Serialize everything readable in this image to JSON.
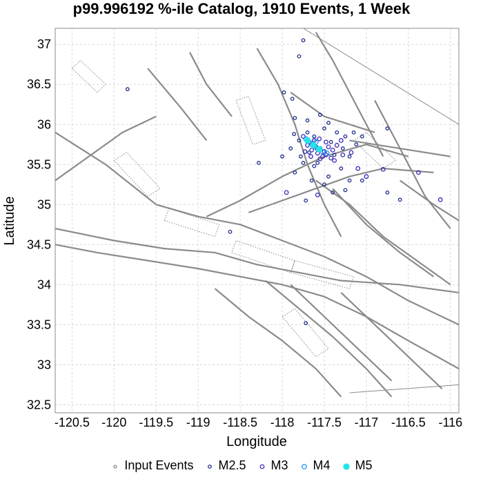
{
  "chart_data": {
    "type": "scatter",
    "title": "p99.996192 %-ile Catalog, 1910 Events, 1 Week",
    "xlabel": "Longitude",
    "ylabel": "Latitude",
    "xlim": [
      -120.7,
      -115.9
    ],
    "ylim": [
      32.4,
      37.2
    ],
    "xticks": [
      -120.5,
      -120,
      -119.5,
      -119,
      -118.5,
      -118,
      -117.5,
      -117,
      -116.5,
      -116
    ],
    "yticks": [
      32.5,
      33,
      33.5,
      34,
      34.5,
      35,
      35.5,
      36,
      36.5,
      37
    ],
    "grid": true,
    "legend_position": "bottom",
    "legend": [
      {
        "label": "Input Events",
        "color": "#888888",
        "filled": false,
        "size": 3
      },
      {
        "label": "M2.5",
        "color": "#1a2a8a",
        "filled": false,
        "size": 3.5
      },
      {
        "label": "M3",
        "color": "#3a2ab8",
        "filled": false,
        "size": 4.5
      },
      {
        "label": "M4",
        "color": "#1e90ff",
        "filled": false,
        "size": 5.5
      },
      {
        "label": "M5",
        "color": "#22e5e5",
        "filled": true,
        "size": 7
      }
    ],
    "series": [
      {
        "name": "Input Events",
        "points": [
          [
            -117.65,
            35.75
          ],
          [
            -117.6,
            35.7
          ],
          [
            -117.55,
            35.68
          ]
        ]
      },
      {
        "name": "M2.5",
        "points": [
          [
            -119.84,
            36.44
          ],
          [
            -117.88,
            36.32
          ],
          [
            -117.75,
            37.05
          ],
          [
            -117.8,
            36.85
          ],
          [
            -117.98,
            36.4
          ],
          [
            -117.85,
            36.08
          ],
          [
            -117.86,
            35.88
          ],
          [
            -118.0,
            35.6
          ],
          [
            -117.9,
            35.7
          ],
          [
            -117.7,
            36.05
          ],
          [
            -117.45,
            36.02
          ],
          [
            -117.35,
            35.9
          ],
          [
            -117.25,
            35.85
          ],
          [
            -117.15,
            35.9
          ],
          [
            -117.05,
            35.85
          ],
          [
            -117.12,
            35.75
          ],
          [
            -117.2,
            35.6
          ],
          [
            -117.3,
            35.45
          ],
          [
            -117.45,
            35.35
          ],
          [
            -117.62,
            35.48
          ],
          [
            -117.75,
            35.52
          ],
          [
            -117.85,
            35.4
          ],
          [
            -117.65,
            35.3
          ],
          [
            -117.5,
            35.25
          ],
          [
            -117.4,
            35.15
          ],
          [
            -117.25,
            35.18
          ],
          [
            -117.2,
            35.3
          ],
          [
            -117.05,
            35.3
          ],
          [
            -116.75,
            35.15
          ],
          [
            -116.6,
            35.06
          ],
          [
            -116.75,
            35.95
          ],
          [
            -117.72,
            33.52
          ],
          [
            -118.28,
            35.52
          ],
          [
            -118.62,
            34.66
          ],
          [
            -117.72,
            35.05
          ],
          [
            -117.55,
            36.12
          ],
          [
            -117.5,
            35.95
          ],
          [
            -117.38,
            35.62
          ],
          [
            -117.58,
            35.52
          ],
          [
            -117.68,
            35.65
          ],
          [
            -117.78,
            35.6
          ],
          [
            -117.8,
            35.8
          ],
          [
            -117.7,
            35.9
          ],
          [
            -117.28,
            35.7
          ],
          [
            -117.42,
            35.78
          ],
          [
            -117.62,
            35.85
          ]
        ]
      },
      {
        "name": "M3",
        "points": [
          [
            -117.75,
            35.85
          ],
          [
            -117.68,
            35.78
          ],
          [
            -117.6,
            35.72
          ],
          [
            -117.55,
            35.7
          ],
          [
            -117.5,
            35.66
          ],
          [
            -117.48,
            35.62
          ],
          [
            -117.52,
            35.6
          ],
          [
            -117.58,
            35.64
          ],
          [
            -117.65,
            35.68
          ],
          [
            -117.7,
            35.74
          ],
          [
            -117.62,
            35.8
          ],
          [
            -117.45,
            35.72
          ],
          [
            -117.4,
            35.68
          ],
          [
            -117.35,
            35.74
          ],
          [
            -117.3,
            35.8
          ],
          [
            -117.42,
            35.58
          ],
          [
            -117.55,
            35.57
          ],
          [
            -117.48,
            35.78
          ],
          [
            -117.56,
            35.82
          ],
          [
            -117.73,
            35.66
          ],
          [
            -117.66,
            35.6
          ],
          [
            -117.1,
            35.45
          ],
          [
            -116.8,
            35.44
          ],
          [
            -117.0,
            35.35
          ],
          [
            -116.38,
            35.4
          ],
          [
            -116.12,
            35.06
          ],
          [
            -117.95,
            35.15
          ],
          [
            -117.58,
            35.12
          ],
          [
            -117.28,
            35.62
          ],
          [
            -117.38,
            35.55
          ],
          [
            -117.18,
            35.65
          ]
        ]
      },
      {
        "name": "M4",
        "points": [
          [
            -117.72,
            35.82
          ],
          [
            -117.66,
            35.76
          ],
          [
            -117.58,
            35.7
          ],
          [
            -117.52,
            35.66
          ],
          [
            -117.47,
            35.64
          ],
          [
            -117.6,
            35.78
          ]
        ]
      },
      {
        "name": "M5",
        "points": [
          [
            -117.7,
            35.8
          ],
          [
            -117.63,
            35.74
          ],
          [
            -117.56,
            35.69
          ]
        ]
      }
    ]
  }
}
